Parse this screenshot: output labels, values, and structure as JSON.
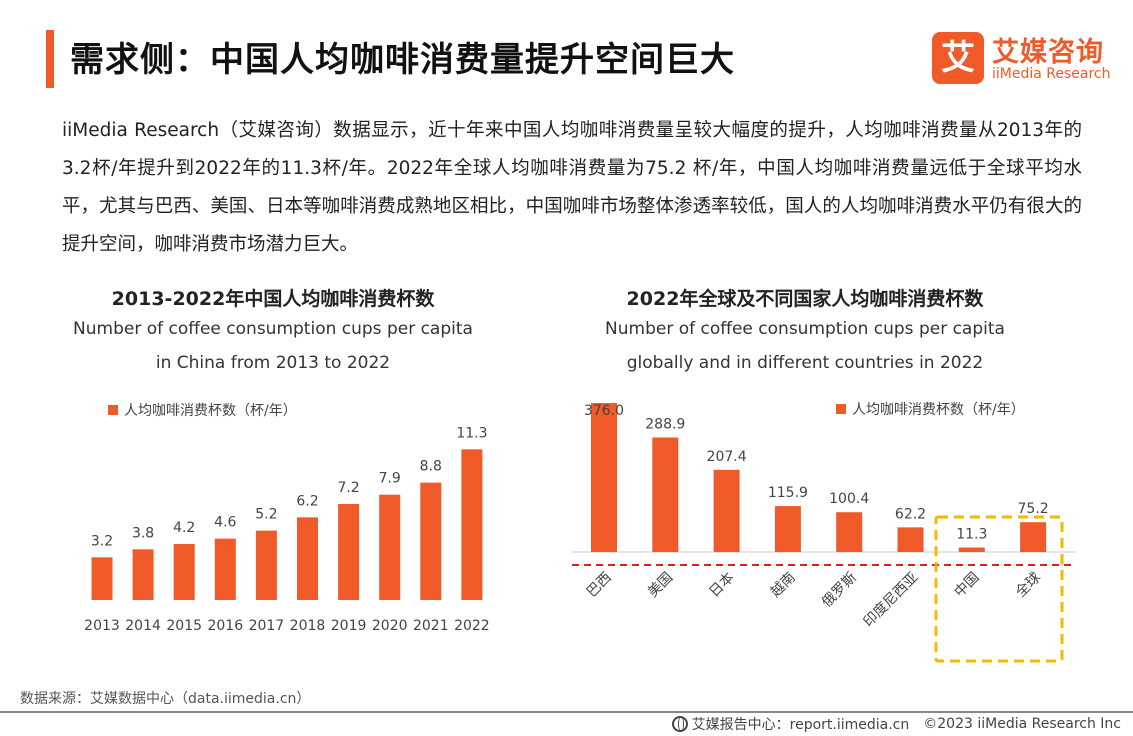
{
  "header": {
    "title": "需求侧：中国人均咖啡消费量提升空间巨大",
    "logo_mark": "艾",
    "logo_cn": "艾媒咨询",
    "logo_en": "iiMedia Research"
  },
  "intro": "iiMedia Research（艾媒咨询）数据显示，近十年来中国人均咖啡消费量呈较大幅度的提升，人均咖啡消费量从2013年的3.2杯/年提升到2022年的11.3杯/年。2022年全球人均咖啡消费量为75.2 杯/年，中国人均咖啡消费量远低于全球平均水平，尤其与巴西、美国、日本等咖啡消费成熟地区相比，中国咖啡市场整体渗透率较低，国人的人均咖啡消费水平仍有很大的提升空间，咖啡消费市场潜力巨大。",
  "colors": {
    "accent": "#f05a28",
    "highlight_box": "#f5b800",
    "ref_line": "#e02020"
  },
  "chart_data": [
    {
      "type": "bar",
      "title": "2013-2022年中国人均咖啡消费杯数",
      "subtitle_line1": "Number of coffee consumption cups per capita",
      "subtitle_line2": "in China from 2013 to 2022",
      "legend": "人均咖啡消费杯数（杯/年）",
      "categories": [
        "2013",
        "2014",
        "2015",
        "2016",
        "2017",
        "2018",
        "2019",
        "2020",
        "2021",
        "2022"
      ],
      "series": [
        {
          "name": "人均咖啡消费杯数（杯/年）",
          "values": [
            3.2,
            3.8,
            4.2,
            4.6,
            5.2,
            6.2,
            7.2,
            7.9,
            8.8,
            11.3
          ]
        }
      ],
      "value_labels": [
        "3.2",
        "3.8",
        "4.2",
        "4.6",
        "5.2",
        "6.2",
        "7.2",
        "7.9",
        "8.8",
        "11.3"
      ],
      "ylim": [
        0,
        12
      ],
      "grid": false
    },
    {
      "type": "bar",
      "title": "2022年全球及不同国家人均咖啡消费杯数",
      "subtitle_line1": "Number of coffee consumption cups per capita",
      "subtitle_line2": "globally and in different countries in 2022",
      "legend": "人均咖啡消费杯数（杯/年）",
      "categories": [
        "巴西",
        "美国",
        "日本",
        "越南",
        "俄罗斯",
        "印度尼西亚",
        "中国",
        "全球"
      ],
      "series": [
        {
          "name": "人均咖啡消费杯数（杯/年）",
          "values": [
            376.0,
            288.9,
            207.4,
            115.9,
            100.4,
            62.2,
            11.3,
            75.2
          ]
        }
      ],
      "value_labels": [
        "376.0",
        "288.9",
        "207.4",
        "115.9",
        "100.4",
        "62.2",
        "11.3",
        "75.2"
      ],
      "ylim": [
        0,
        376
      ],
      "grid": false,
      "highlighted_categories": [
        "中国",
        "全球"
      ]
    }
  ],
  "footer": {
    "source": "数据来源：艾媒数据中心（data.iimedia.cn）",
    "report_center": "艾媒报告中心：report.iimedia.cn",
    "copyright": "©2023  iiMedia Research  Inc"
  }
}
